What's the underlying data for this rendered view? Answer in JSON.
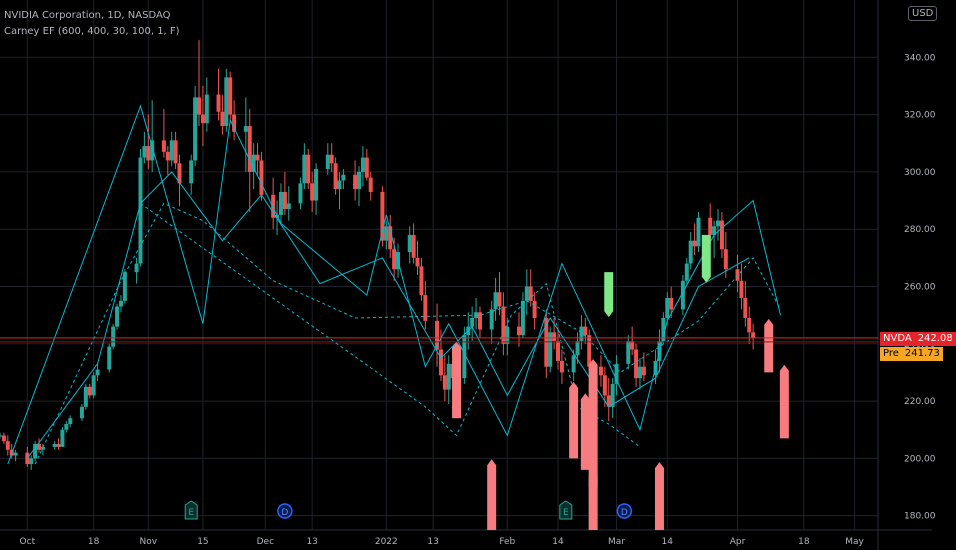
{
  "header": {
    "title": "NVIDIA Corporation, 1D, NASDAQ",
    "indicator": "Carney EF (600, 400, 30, 100, 1, F)",
    "currency": "USD"
  },
  "price_tags": {
    "last_symbol": "NVDA",
    "last_value": "242.08",
    "pre_symbol": "Pre",
    "pre_value": "241.73"
  },
  "colors": {
    "background": "#000000",
    "grid": "#1f222b",
    "up": "#26a69a",
    "down": "#ef5350",
    "pattern": "#00bcd4",
    "last_line": "#e4232b",
    "bear_marker": "#f77c80",
    "bull_marker": "#7ee787"
  },
  "chart_data": {
    "type": "candlestick",
    "ylim": [
      175,
      360
    ],
    "y_ticks": [
      180,
      200,
      220,
      240,
      260,
      280,
      300,
      320,
      340
    ],
    "x_ticks": [
      {
        "label": "Oct",
        "day": 0
      },
      {
        "label": "18",
        "day": 17
      },
      {
        "label": "Nov",
        "day": 31
      },
      {
        "label": "15",
        "day": 45
      },
      {
        "label": "Dec",
        "day": 61
      },
      {
        "label": "13",
        "day": 73
      },
      {
        "label": "2022",
        "day": 92
      },
      {
        "label": "13",
        "day": 104
      },
      {
        "label": "Feb",
        "day": 123
      },
      {
        "label": "14",
        "day": 136
      },
      {
        "label": "Mar",
        "day": 151
      },
      {
        "label": "14",
        "day": 164
      },
      {
        "label": "Apr",
        "day": 182
      },
      {
        "label": "18",
        "day": 199
      },
      {
        "label": "May",
        "day": 212
      }
    ],
    "xlim": [
      -7,
      218
    ],
    "candles": [
      [
        -7,
        208,
        209,
        207,
        208
      ],
      [
        -6,
        208,
        209,
        205,
        206
      ],
      [
        -5,
        206,
        208,
        201,
        203
      ],
      [
        -4,
        203,
        205,
        200,
        201
      ],
      [
        -3,
        201,
        203,
        199,
        202
      ],
      [
        0,
        202,
        204,
        197,
        198
      ],
      [
        1,
        198,
        201,
        196,
        200
      ],
      [
        2,
        200,
        206,
        199,
        205
      ],
      [
        3,
        205,
        207,
        202,
        203
      ],
      [
        4,
        203,
        205,
        201,
        204
      ],
      [
        7,
        204,
        206,
        203,
        205
      ],
      [
        8,
        205,
        207,
        203,
        204
      ],
      [
        9,
        204,
        211,
        204,
        210
      ],
      [
        10,
        210,
        213,
        209,
        212
      ],
      [
        11,
        212,
        215,
        211,
        214
      ],
      [
        14,
        214,
        219,
        213,
        218
      ],
      [
        15,
        218,
        226,
        217,
        225
      ],
      [
        16,
        225,
        226,
        221,
        222
      ],
      [
        17,
        222,
        230,
        221,
        229
      ],
      [
        18,
        229,
        233,
        227,
        231
      ],
      [
        21,
        231,
        240,
        230,
        239
      ],
      [
        22,
        239,
        247,
        238,
        246
      ],
      [
        23,
        246,
        254,
        245,
        253
      ],
      [
        24,
        253,
        257,
        251,
        255
      ],
      [
        25,
        255,
        266,
        254,
        265
      ],
      [
        28,
        265,
        270,
        261,
        268
      ],
      [
        29,
        268,
        308,
        267,
        305
      ],
      [
        30,
        305,
        314,
        303,
        309
      ],
      [
        31,
        309,
        320,
        301,
        304
      ],
      [
        32,
        304,
        325,
        300,
        311
      ],
      [
        35,
        311,
        322,
        305,
        307
      ],
      [
        36,
        307,
        309,
        299,
        304
      ],
      [
        37,
        304,
        314,
        302,
        311
      ],
      [
        38,
        311,
        314,
        301,
        303
      ],
      [
        39,
        303,
        306,
        288,
        296
      ],
      [
        42,
        296,
        306,
        292,
        304
      ],
      [
        43,
        304,
        330,
        302,
        326
      ],
      [
        44,
        326,
        346,
        316,
        320
      ],
      [
        45,
        320,
        330,
        309,
        317
      ],
      [
        46,
        317,
        333,
        314,
        327
      ],
      [
        49,
        327,
        336,
        318,
        321
      ],
      [
        50,
        321,
        327,
        313,
        316
      ],
      [
        51,
        316,
        336,
        314,
        333
      ],
      [
        52,
        333,
        335,
        317,
        320
      ],
      [
        53,
        320,
        325,
        311,
        314
      ],
      [
        56,
        314,
        326,
        300,
        316
      ],
      [
        57,
        316,
        322,
        286,
        300
      ],
      [
        58,
        300,
        310,
        294,
        306
      ],
      [
        59,
        306,
        310,
        299,
        304
      ],
      [
        60,
        304,
        307,
        290,
        292
      ],
      [
        63,
        292,
        298,
        280,
        284
      ],
      [
        64,
        284,
        290,
        278,
        285
      ],
      [
        65,
        285,
        296,
        282,
        293
      ],
      [
        66,
        293,
        300,
        285,
        287
      ],
      [
        67,
        287,
        295,
        283,
        289
      ],
      [
        70,
        289,
        298,
        287,
        296
      ],
      [
        71,
        296,
        310,
        294,
        306
      ],
      [
        72,
        306,
        308,
        294,
        296
      ],
      [
        73,
        296,
        300,
        286,
        290
      ],
      [
        74,
        290,
        303,
        285,
        301
      ],
      [
        77,
        301,
        310,
        299,
        306
      ],
      [
        78,
        306,
        310,
        300,
        303
      ],
      [
        79,
        303,
        305,
        292,
        294
      ],
      [
        80,
        294,
        300,
        287,
        297
      ],
      [
        81,
        297,
        301,
        294,
        299
      ],
      [
        84,
        299,
        304,
        290,
        294
      ],
      [
        85,
        294,
        302,
        288,
        300
      ],
      [
        86,
        300,
        309,
        295,
        305
      ],
      [
        87,
        305,
        308,
        297,
        298
      ],
      [
        88,
        298,
        300,
        290,
        293
      ],
      [
        91,
        293,
        295,
        274,
        276
      ],
      [
        92,
        276,
        283,
        273,
        281
      ],
      [
        93,
        281,
        285,
        270,
        273
      ],
      [
        94,
        273,
        277,
        262,
        266
      ],
      [
        95,
        266,
        275,
        263,
        272
      ],
      [
        98,
        272,
        281,
        268,
        278
      ],
      [
        99,
        278,
        282,
        268,
        270
      ],
      [
        100,
        270,
        276,
        264,
        267
      ],
      [
        101,
        267,
        270,
        255,
        257
      ],
      [
        102,
        257,
        262,
        245,
        248
      ],
      [
        105,
        248,
        254,
        232,
        238
      ],
      [
        106,
        238,
        245,
        227,
        229
      ],
      [
        107,
        229,
        236,
        220,
        224
      ],
      [
        108,
        224,
        236,
        219,
        233
      ],
      [
        109,
        233,
        238,
        226,
        228
      ],
      [
        112,
        228,
        246,
        226,
        243
      ],
      [
        113,
        243,
        251,
        238,
        246
      ],
      [
        114,
        246,
        253,
        241,
        249
      ],
      [
        115,
        249,
        256,
        245,
        251
      ],
      [
        116,
        251,
        253,
        242,
        245
      ],
      [
        119,
        245,
        255,
        240,
        252
      ],
      [
        120,
        252,
        263,
        248,
        258
      ],
      [
        121,
        258,
        265,
        250,
        253
      ],
      [
        122,
        253,
        258,
        236,
        240
      ],
      [
        123,
        240,
        249,
        236,
        246
      ],
      [
        126,
        246,
        251,
        239,
        243
      ],
      [
        127,
        243,
        258,
        242,
        255
      ],
      [
        128,
        255,
        266,
        250,
        260
      ],
      [
        129,
        260,
        266,
        253,
        255
      ],
      [
        130,
        255,
        258,
        245,
        249
      ],
      [
        133,
        249,
        252,
        228,
        232
      ],
      [
        134,
        232,
        246,
        230,
        244
      ],
      [
        135,
        244,
        249,
        238,
        241
      ],
      [
        136,
        241,
        246,
        231,
        234
      ],
      [
        137,
        234,
        238,
        226,
        230
      ],
      [
        140,
        230,
        238,
        227,
        236
      ],
      [
        141,
        236,
        244,
        233,
        241
      ],
      [
        142,
        241,
        250,
        238,
        246
      ],
      [
        143,
        246,
        249,
        240,
        243
      ],
      [
        144,
        243,
        245,
        228,
        232
      ],
      [
        147,
        232,
        236,
        225,
        229
      ],
      [
        148,
        229,
        232,
        218,
        222
      ],
      [
        149,
        222,
        228,
        213,
        218
      ],
      [
        150,
        218,
        228,
        214,
        226
      ],
      [
        151,
        226,
        236,
        222,
        233
      ],
      [
        154,
        233,
        243,
        231,
        241
      ],
      [
        155,
        241,
        246,
        236,
        238
      ],
      [
        156,
        238,
        240,
        225,
        228
      ],
      [
        157,
        228,
        235,
        224,
        232
      ],
      [
        158,
        232,
        237,
        227,
        229
      ],
      [
        161,
        229,
        238,
        226,
        234
      ],
      [
        162,
        234,
        245,
        230,
        241
      ],
      [
        163,
        241,
        251,
        240,
        249
      ],
      [
        164,
        249,
        258,
        247,
        256
      ],
      [
        165,
        256,
        260,
        249,
        252
      ],
      [
        168,
        252,
        264,
        250,
        262
      ],
      [
        169,
        262,
        270,
        260,
        268
      ],
      [
        170,
        268,
        279,
        266,
        276
      ],
      [
        171,
        276,
        282,
        271,
        274
      ],
      [
        172,
        274,
        286,
        272,
        284
      ],
      [
        175,
        284,
        289,
        275,
        278
      ],
      [
        176,
        278,
        283,
        270,
        281
      ],
      [
        177,
        281,
        287,
        276,
        283
      ],
      [
        178,
        283,
        286,
        270,
        273
      ],
      [
        179,
        273,
        279,
        263,
        266
      ],
      [
        182,
        266,
        271,
        258,
        262
      ],
      [
        183,
        262,
        268,
        252,
        256
      ],
      [
        184,
        256,
        262,
        246,
        249
      ],
      [
        185,
        249,
        253,
        240,
        244
      ],
      [
        186,
        244,
        247,
        238,
        242
      ]
    ],
    "pattern_lines": [
      [
        [
          -5,
          198
        ],
        [
          29,
          323
        ],
        [
          45,
          247
        ],
        [
          52,
          318
        ],
        [
          65,
          282
        ],
        [
          87,
          257
        ],
        [
          92,
          285
        ],
        [
          102,
          232
        ],
        [
          108,
          247
        ],
        [
          123,
          208
        ],
        [
          137,
          268
        ],
        [
          157,
          210
        ],
        [
          164,
          248
        ],
        [
          176,
          278
        ],
        [
          186,
          290
        ],
        [
          193,
          250
        ]
      ],
      [
        [
          0,
          200
        ],
        [
          18,
          233
        ],
        [
          29,
          289
        ],
        [
          37,
          300
        ],
        [
          50,
          276
        ],
        [
          60,
          292
        ],
        [
          75,
          261
        ],
        [
          91,
          270
        ],
        [
          106,
          235
        ],
        [
          114,
          246
        ],
        [
          123,
          222
        ],
        [
          134,
          249
        ],
        [
          149,
          218
        ],
        [
          161,
          228
        ],
        [
          172,
          260
        ],
        [
          185,
          270
        ]
      ]
    ],
    "dashed_lines": [
      [
        [
          29,
          289
        ],
        [
          102,
          218
        ],
        [
          110,
          208
        ],
        [
          124,
          250
        ],
        [
          133,
          261
        ],
        [
          141,
          218
        ],
        [
          149,
          212
        ],
        [
          157,
          204
        ]
      ],
      [
        [
          2,
          198
        ],
        [
          24,
          262
        ],
        [
          35,
          289
        ],
        [
          45,
          283
        ],
        [
          63,
          262
        ],
        [
          84,
          249
        ],
        [
          116,
          250
        ],
        [
          128,
          255
        ],
        [
          142,
          244
        ],
        [
          152,
          230
        ],
        [
          172,
          248
        ],
        [
          186,
          270
        ],
        [
          193,
          252
        ]
      ]
    ],
    "bear_markers": [
      {
        "day": 110,
        "top": 240,
        "bottom": 214
      },
      {
        "day": 140,
        "top": 226,
        "bottom": 200
      },
      {
        "day": 143,
        "top": 222,
        "bottom": 196
      },
      {
        "day": 145,
        "top": 234,
        "bottom": 190
      },
      {
        "day": 190,
        "top": 248,
        "bottom": 230
      },
      {
        "day": 194,
        "top": 232,
        "bottom": 207
      },
      {
        "day": 119,
        "top": 199,
        "bottom": 175
      },
      {
        "day": 145,
        "top": 195,
        "bottom": 175
      },
      {
        "day": 162,
        "top": 198,
        "bottom": 175
      }
    ],
    "bull_markers": [
      {
        "day": 149,
        "top": 265,
        "bottom": 250
      },
      {
        "day": 174,
        "top": 278,
        "bottom": 262
      }
    ],
    "event_markers": [
      {
        "day": 42,
        "label": "E",
        "type": "earnings"
      },
      {
        "day": 66,
        "label": "D",
        "type": "dividend"
      },
      {
        "day": 138,
        "label": "E",
        "type": "earnings"
      },
      {
        "day": 153,
        "label": "D",
        "type": "dividend"
      }
    ],
    "last_price": 242.08,
    "pre_price": 241.73
  }
}
